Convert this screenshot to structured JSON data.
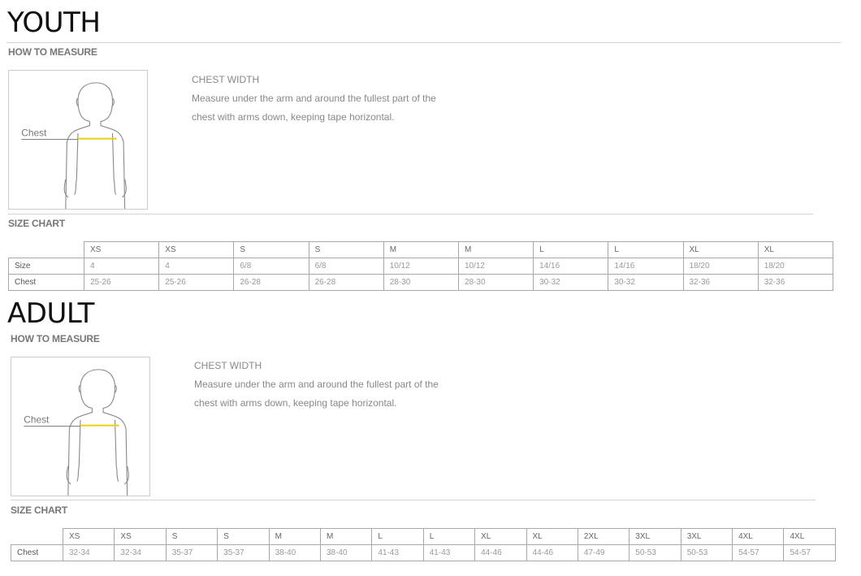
{
  "sections": [
    {
      "id": "youth",
      "title": "YOUTH",
      "how_to_measure": "HOW TO MEASURE",
      "figure_label": "Chest",
      "measure_title": "CHEST WIDTH",
      "measure_lines": [
        "Measure under the arm and around the fullest part of the",
        "chest with arms down, keeping tape horizontal."
      ],
      "size_chart_label": "SIZE CHART",
      "table": {
        "header": [
          "",
          "XS",
          "XS",
          "S",
          "S",
          "M",
          "M",
          "L",
          "L",
          "XL",
          "XL"
        ],
        "rows": [
          {
            "label": "Size",
            "values": [
              "4",
              "4",
              "6/8",
              "6/8",
              "10/12",
              "10/12",
              "14/16",
              "14/16",
              "18/20",
              "18/20"
            ]
          },
          {
            "label": "Chest",
            "values": [
              "25-26",
              "25-26",
              "26-28",
              "26-28",
              "28-30",
              "28-30",
              "30-32",
              "30-32",
              "32-36",
              "32-36"
            ]
          }
        ]
      }
    },
    {
      "id": "adult",
      "title": "ADULT",
      "how_to_measure": "HOW TO MEASURE",
      "figure_label": "Chest",
      "measure_title": "CHEST WIDTH",
      "measure_lines": [
        "Measure under the arm and around the fullest part of the",
        "chest with arms down, keeping tape horizontal."
      ],
      "size_chart_label": "SIZE CHART",
      "table": {
        "header": [
          "",
          "XS",
          "XS",
          "S",
          "S",
          "M",
          "M",
          "L",
          "L",
          "XL",
          "XL",
          "2XL",
          "3XL",
          "3XL",
          "4XL",
          "4XL"
        ],
        "rows": [
          {
            "label": "Chest",
            "values": [
              "32-34",
              "32-34",
              "35-37",
              "35-37",
              "38-40",
              "38-40",
              "41-43",
              "41-43",
              "44-46",
              "44-46",
              "47-49",
              "50-53",
              "50-53",
              "54-57",
              "54-57"
            ]
          }
        ]
      }
    }
  ],
  "colors": {
    "tape": "#e8d21a",
    "figure_line": "#8a8a8a"
  }
}
